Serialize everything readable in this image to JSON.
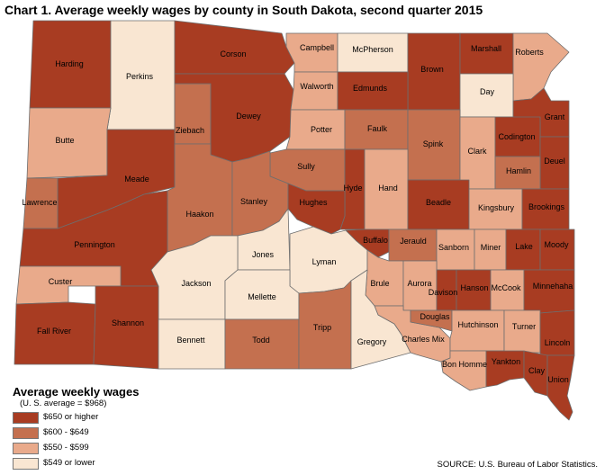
{
  "title": "Chart 1. Average weekly wages by county in South Dakota, second quarter 2015",
  "colors": {
    "c650": "#a83c22",
    "c600": "#c4704f",
    "c550": "#e9aa8b",
    "c549": "#f9e6d2"
  },
  "legend": {
    "title": "Average weekly wages",
    "subtitle": "(U. S. average = $968)",
    "items": [
      {
        "key": "c650",
        "label": "$650 or higher"
      },
      {
        "key": "c600",
        "label": "$600 - $649"
      },
      {
        "key": "c550",
        "label": "$550 - $599"
      },
      {
        "key": "c549",
        "label": "$549 or lower"
      }
    ]
  },
  "source": "SOURCE: U.S. Bureau of Labor Statistics.",
  "counties": [
    {
      "name": "Harding",
      "cls": "c650"
    },
    {
      "name": "Perkins",
      "cls": "c549"
    },
    {
      "name": "Corson",
      "cls": "c650"
    },
    {
      "name": "Campbell",
      "cls": "c550"
    },
    {
      "name": "McPherson",
      "cls": "c549"
    },
    {
      "name": "Brown",
      "cls": "c650"
    },
    {
      "name": "Marshall",
      "cls": "c650"
    },
    {
      "name": "Roberts",
      "cls": "c550"
    },
    {
      "name": "Butte",
      "cls": "c550"
    },
    {
      "name": "Ziebach",
      "cls": "c600"
    },
    {
      "name": "Dewey",
      "cls": "c650"
    },
    {
      "name": "Walworth",
      "cls": "c550"
    },
    {
      "name": "Edmunds",
      "cls": "c650"
    },
    {
      "name": "Day",
      "cls": "c549"
    },
    {
      "name": "Grant",
      "cls": "c650"
    },
    {
      "name": "Potter",
      "cls": "c550"
    },
    {
      "name": "Faulk",
      "cls": "c600"
    },
    {
      "name": "Spink",
      "cls": "c600"
    },
    {
      "name": "Clark",
      "cls": "c550"
    },
    {
      "name": "Codington",
      "cls": "c650"
    },
    {
      "name": "Deuel",
      "cls": "c650"
    },
    {
      "name": "Meade",
      "cls": "c650"
    },
    {
      "name": "Lawrence",
      "cls": "c600"
    },
    {
      "name": "Sully",
      "cls": "c600"
    },
    {
      "name": "Hamlin",
      "cls": "c600"
    },
    {
      "name": "Hyde",
      "cls": "c650"
    },
    {
      "name": "Hand",
      "cls": "c550"
    },
    {
      "name": "Haakon",
      "cls": "c600"
    },
    {
      "name": "Stanley",
      "cls": "c600"
    },
    {
      "name": "Hughes",
      "cls": "c650"
    },
    {
      "name": "Beadle",
      "cls": "c650"
    },
    {
      "name": "Kingsbury",
      "cls": "c550"
    },
    {
      "name": "Brookings",
      "cls": "c650"
    },
    {
      "name": "Pennington",
      "cls": "c650"
    },
    {
      "name": "Jones",
      "cls": "c549"
    },
    {
      "name": "Lyman",
      "cls": "c549"
    },
    {
      "name": "Buffalo",
      "cls": "c650"
    },
    {
      "name": "Jerauld",
      "cls": "c600"
    },
    {
      "name": "Sanborn",
      "cls": "c550"
    },
    {
      "name": "Miner",
      "cls": "c550"
    },
    {
      "name": "Lake",
      "cls": "c650"
    },
    {
      "name": "Moody",
      "cls": "c650"
    },
    {
      "name": "Custer",
      "cls": "c550"
    },
    {
      "name": "Jackson",
      "cls": "c549"
    },
    {
      "name": "Mellette",
      "cls": "c549"
    },
    {
      "name": "Brule",
      "cls": "c550"
    },
    {
      "name": "Aurora",
      "cls": "c550"
    },
    {
      "name": "Davison",
      "cls": "c650"
    },
    {
      "name": "Hanson",
      "cls": "c650"
    },
    {
      "name": "McCook",
      "cls": "c550"
    },
    {
      "name": "Minnehaha",
      "cls": "c650"
    },
    {
      "name": "Fall River",
      "cls": "c650"
    },
    {
      "name": "Shannon",
      "cls": "c650"
    },
    {
      "name": "Bennett",
      "cls": "c549"
    },
    {
      "name": "Todd",
      "cls": "c600"
    },
    {
      "name": "Tripp",
      "cls": "c600"
    },
    {
      "name": "Gregory",
      "cls": "c549"
    },
    {
      "name": "Charles Mix",
      "cls": "c550"
    },
    {
      "name": "Douglas",
      "cls": "c600"
    },
    {
      "name": "Hutchinson",
      "cls": "c550"
    },
    {
      "name": "Turner",
      "cls": "c550"
    },
    {
      "name": "Lincoln",
      "cls": "c650"
    },
    {
      "name": "Bon Homme",
      "cls": "c550"
    },
    {
      "name": "Yankton",
      "cls": "c650"
    },
    {
      "name": "Clay",
      "cls": "c650"
    },
    {
      "name": "Union",
      "cls": "c650"
    }
  ]
}
